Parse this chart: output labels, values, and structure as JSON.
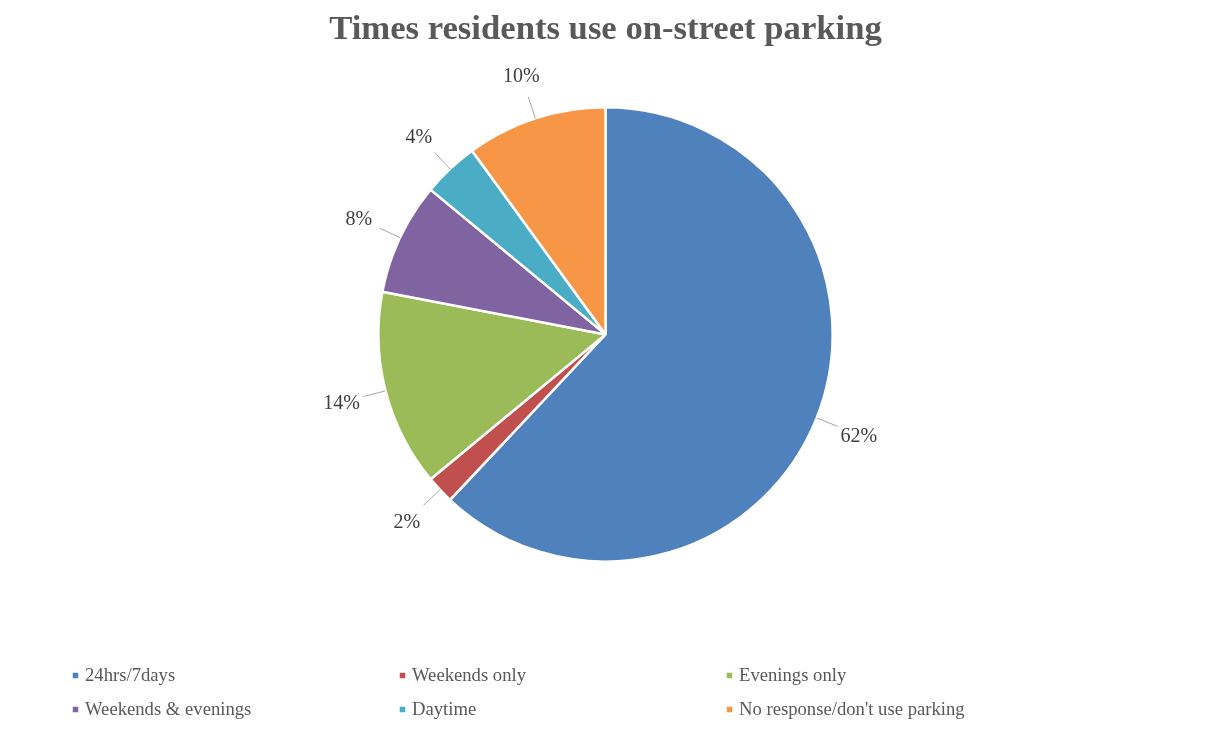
{
  "chart_data": {
    "type": "pie",
    "title": "Times residents use on-street parking",
    "categories": [
      "24hrs/7days",
      "Weekends only",
      "Evenings only",
      "Weekends & evenings",
      "Daytime",
      "No response/don't use parking"
    ],
    "values": [
      62,
      2,
      14,
      8,
      4,
      10
    ],
    "colors": [
      "#4f81bd",
      "#c0504d",
      "#9bbb59",
      "#8064a2",
      "#4bacc6",
      "#f79646"
    ],
    "value_labels": [
      "62%",
      "2%",
      "14%",
      "8%",
      "4%",
      "10%"
    ],
    "legend": "bottom"
  }
}
